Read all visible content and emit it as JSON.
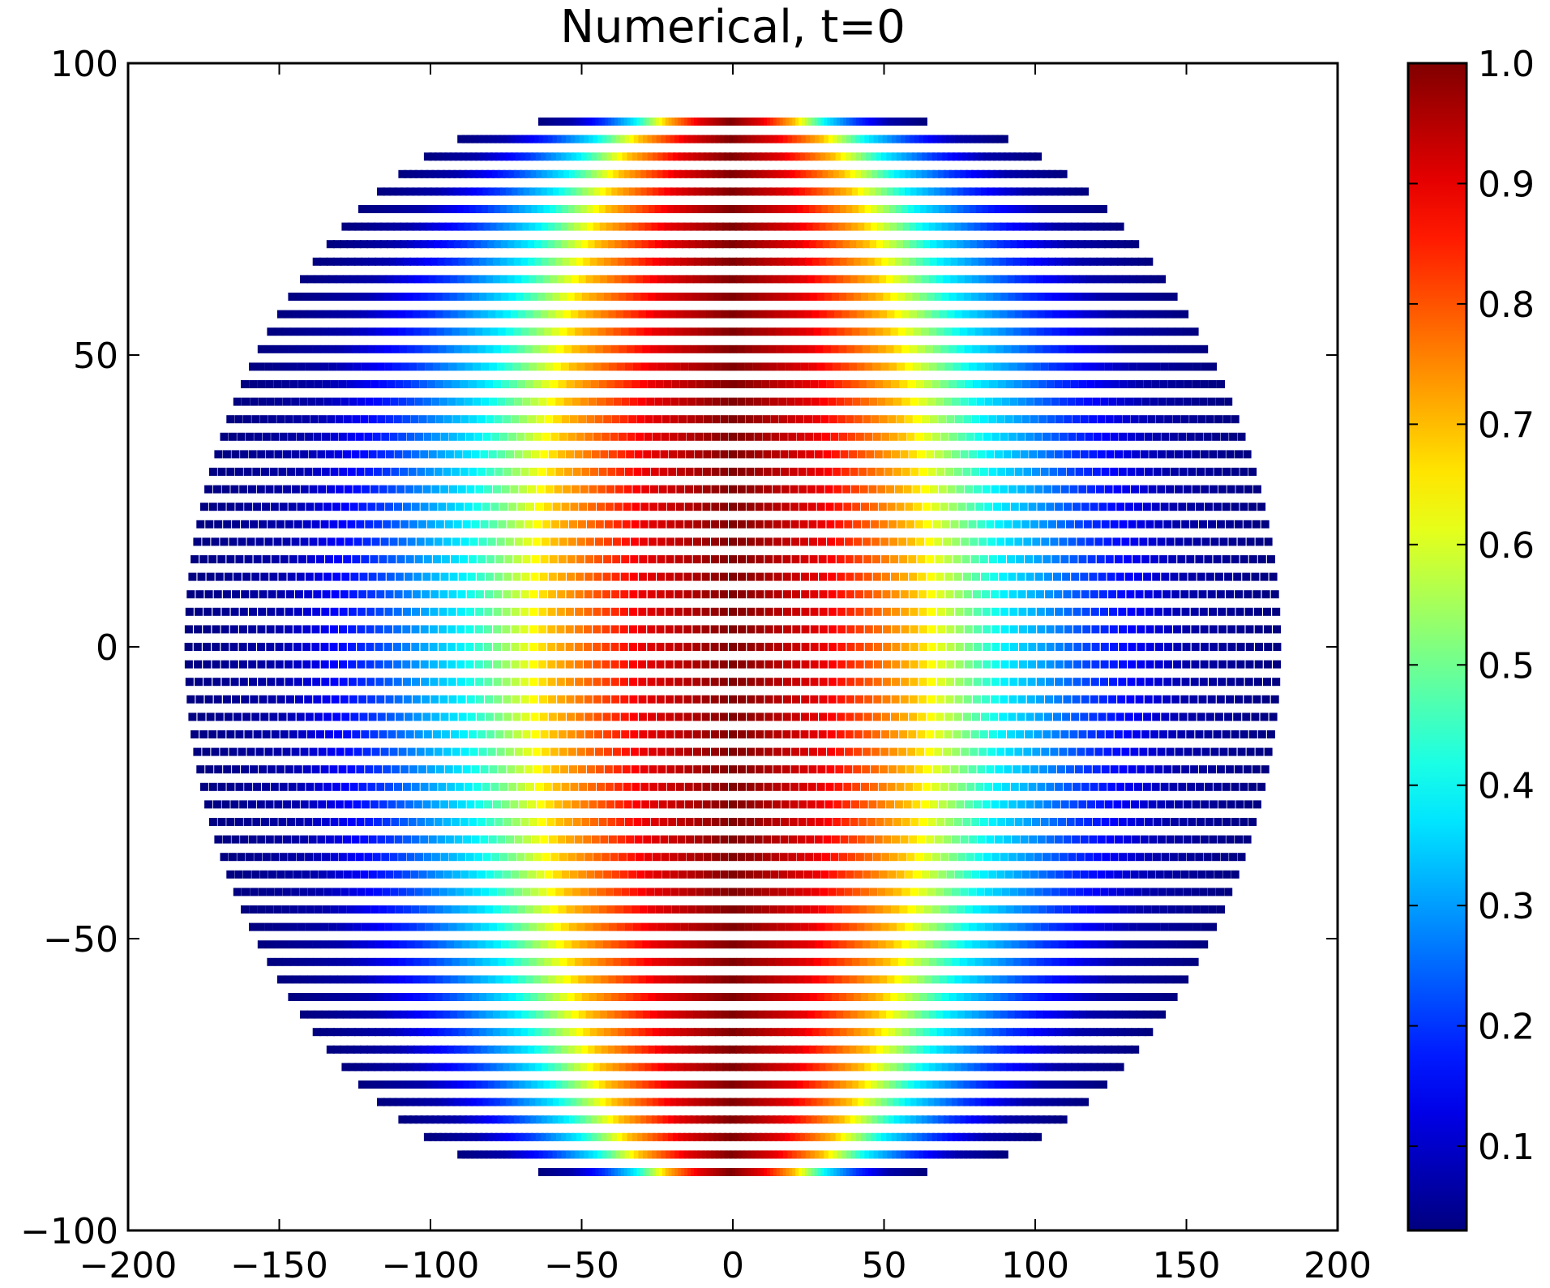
{
  "chart_data": {
    "type": "scatter",
    "title": "Numerical, t=0",
    "xlabel": "",
    "ylabel": "",
    "xlim": [
      -200,
      200
    ],
    "ylim": [
      -100,
      100
    ],
    "xticks": [
      -200,
      -150,
      -100,
      -50,
      0,
      50,
      100,
      150,
      200
    ],
    "yticks": [
      -100,
      -50,
      0,
      50,
      100
    ],
    "xtick_labels": [
      "−200",
      "−150",
      "−100",
      "−50",
      "0",
      "50",
      "100",
      "150",
      "200"
    ],
    "ytick_labels": [
      "−100",
      "−50",
      "0",
      "50",
      "100"
    ],
    "grid": false,
    "description_of_field": "scalar field on a lon/lat grid; value depends on longitude only",
    "longitude_range": [
      -180,
      180
    ],
    "latitude_range": [
      -90,
      90
    ],
    "grid_step_deg": 3,
    "field_samples": {
      "lon": [
        -180,
        -150,
        -120,
        -90,
        -60,
        -30,
        0,
        30,
        60,
        90,
        120,
        150,
        180
      ],
      "value": [
        0.03,
        0.07,
        0.2,
        0.38,
        0.7,
        0.9,
        1.0,
        0.9,
        0.7,
        0.38,
        0.2,
        0.07,
        0.03
      ]
    },
    "colorbar": {
      "colormap": "jet",
      "vmin": 0.03,
      "vmax": 1.0,
      "ticks": [
        0.1,
        0.2,
        0.3,
        0.4,
        0.5,
        0.6,
        0.7,
        0.8,
        0.9,
        1.0
      ],
      "tick_labels": [
        "0.1",
        "0.2",
        "0.3",
        "0.4",
        "0.5",
        "0.6",
        "0.7",
        "0.8",
        "0.9",
        "1.0"
      ]
    }
  }
}
